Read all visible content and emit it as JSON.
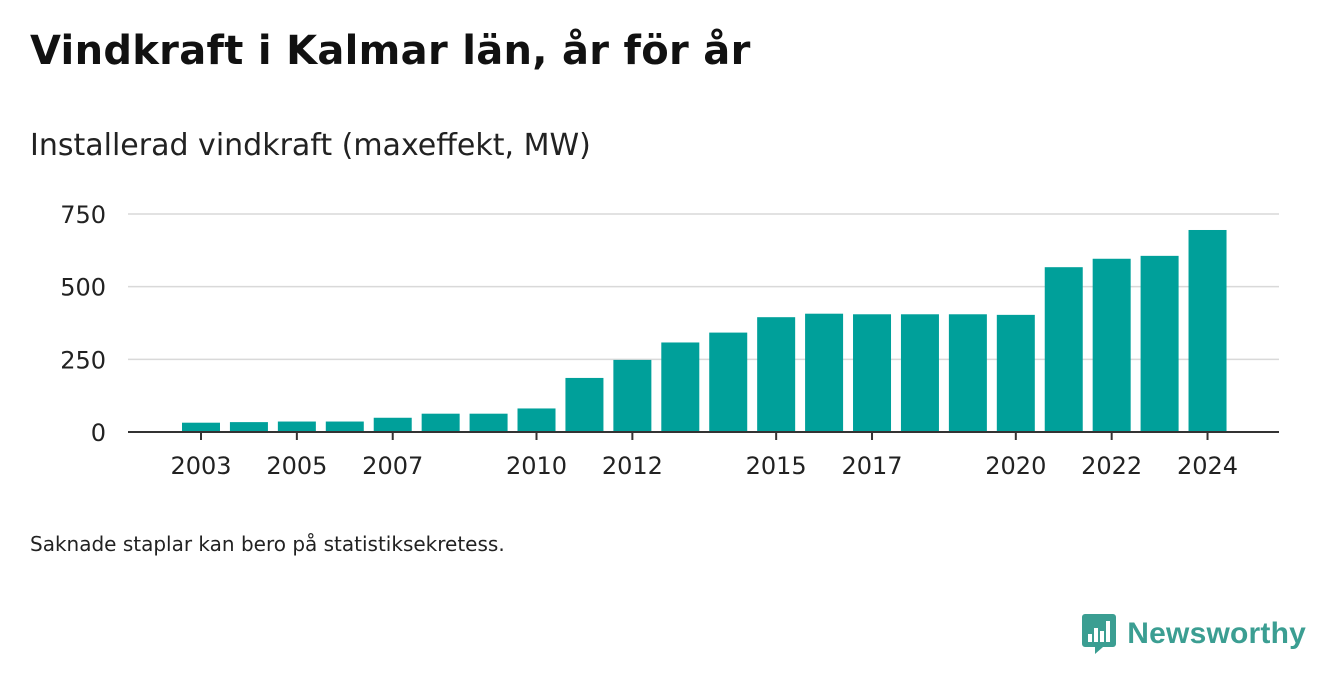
{
  "title": "Vindkraft i Kalmar län, år för år",
  "subtitle": "Installerad vindkraft (maxeffekt, MW)",
  "footnote": "Saknade staplar kan bero på statistiksekretess.",
  "brand": {
    "name": "Newsworthy",
    "icon": "newsworthy-logo-icon",
    "color": "#3b9e92"
  },
  "chart_data": {
    "type": "bar",
    "title": "",
    "xlabel": "",
    "ylabel": "",
    "color": "#00a09a",
    "ylim": [
      0,
      750
    ],
    "yticks": [
      0,
      250,
      500,
      750
    ],
    "grid": true,
    "categories": [
      "2003",
      "2004",
      "2005",
      "2006",
      "2007",
      "2008",
      "2009",
      "2010",
      "2011",
      "2012",
      "2013",
      "2014",
      "2015",
      "2016",
      "2017",
      "2018",
      "2019",
      "2020",
      "2021",
      "2022",
      "2023",
      "2024"
    ],
    "xticks": [
      "2003",
      "2005",
      "2007",
      "2010",
      "2012",
      "2015",
      "2017",
      "2020",
      "2022",
      "2024"
    ],
    "values": [
      32,
      34,
      36,
      36,
      49,
      63,
      63,
      81,
      186,
      248,
      308,
      342,
      395,
      407,
      405,
      405,
      405,
      403,
      567,
      596,
      606,
      695
    ]
  }
}
